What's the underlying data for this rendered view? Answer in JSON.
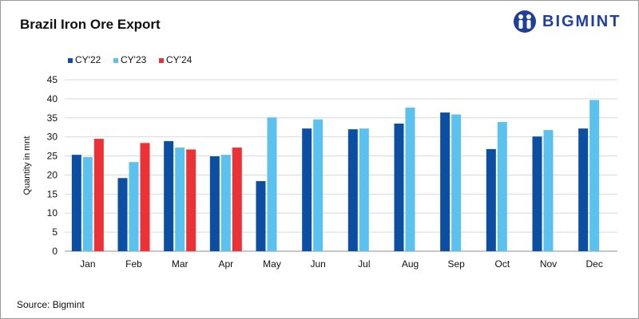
{
  "header": {
    "title": "Brazil Iron Ore Export",
    "brand": "BIGMINT"
  },
  "footer": {
    "source": "Source: Bigmint"
  },
  "colors": {
    "CY'22": "#0b4ea2",
    "CY'23": "#5bc2f0",
    "CY'24": "#ec3237",
    "brand": "#1f3f9b"
  },
  "chart_data": {
    "type": "bar",
    "title": "Brazil Iron Ore Export",
    "xlabel": "",
    "ylabel": "Quantity in mnt",
    "ylim": [
      0,
      45
    ],
    "yticks": [
      0,
      5,
      10,
      15,
      20,
      25,
      30,
      35,
      40,
      45
    ],
    "grid": true,
    "legend_position": "top-left",
    "categories": [
      "Jan",
      "Feb",
      "Mar",
      "Apr",
      "May",
      "Jun",
      "Jul",
      "Aug",
      "Sep",
      "Oct",
      "Nov",
      "Dec"
    ],
    "series": [
      {
        "name": "CY'22",
        "values": [
          25.3,
          19.2,
          28.9,
          24.9,
          18.4,
          32.2,
          32.0,
          33.5,
          36.4,
          26.8,
          30.1,
          32.2
        ]
      },
      {
        "name": "CY'23",
        "values": [
          24.7,
          23.4,
          27.2,
          25.3,
          35.1,
          34.6,
          32.2,
          37.7,
          35.9,
          33.9,
          31.8,
          39.7
        ]
      },
      {
        "name": "CY'24",
        "values": [
          29.5,
          28.4,
          26.7,
          27.2,
          null,
          null,
          null,
          null,
          null,
          null,
          null,
          null
        ]
      }
    ]
  }
}
